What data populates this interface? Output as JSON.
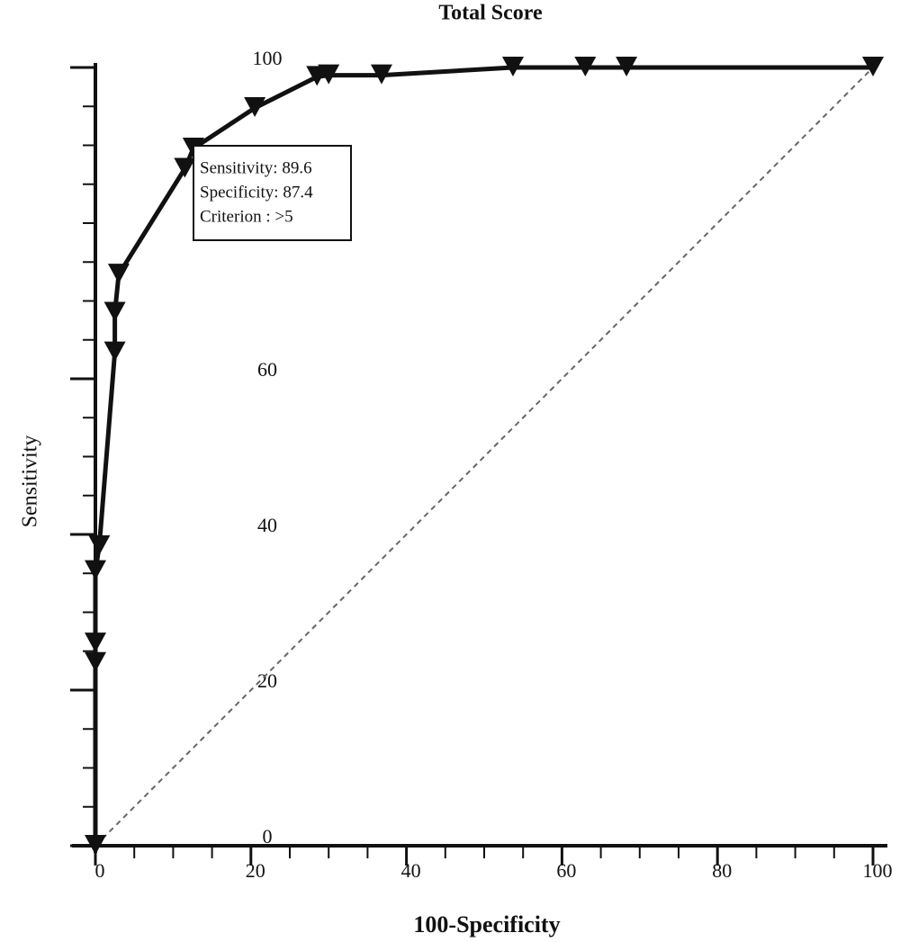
{
  "chart_data": {
    "type": "line",
    "title": "Total Score",
    "x_label": "100-Specificity",
    "y_label": "Sensitivity",
    "x": [
      0,
      0,
      0,
      0,
      0.5,
      2.5,
      2.5,
      3,
      11.5,
      12.6,
      20.5,
      28.5,
      30,
      36.8,
      53.7,
      63,
      68.3,
      100
    ],
    "values": [
      0,
      23.5,
      26,
      35.3,
      38.5,
      63.4,
      68.5,
      73.4,
      87,
      89.6,
      94.8,
      98.8,
      99,
      99,
      100,
      100,
      100,
      100
    ],
    "color": "#111111",
    "xlim": [
      0,
      100
    ],
    "ylim": [
      0,
      100
    ],
    "xticks": [
      0,
      20,
      40,
      60,
      80,
      100
    ],
    "yticks": [
      0,
      20,
      40,
      60,
      100
    ],
    "annotation": [
      "Sensitivity: 89.6",
      "Specificity: 87.4",
      "Criterion : >5"
    ],
    "diagonal": true,
    "grid": false
  }
}
